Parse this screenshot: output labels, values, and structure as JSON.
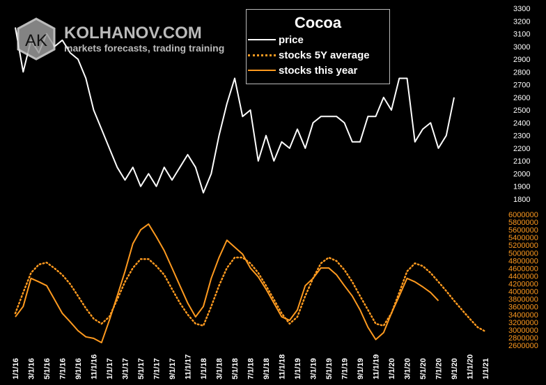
{
  "chart_data": {
    "type": "line",
    "title": "Cocoa",
    "x_tick_labels": [
      "1/1/16",
      "3/1/16",
      "5/1/16",
      "7/1/16",
      "9/1/16",
      "11/1/16",
      "1/1/17",
      "3/1/17",
      "5/1/17",
      "7/1/17",
      "9/1/17",
      "11/1/17",
      "1/1/18",
      "3/1/18",
      "5/1/18",
      "7/1/18",
      "9/1/18",
      "11/1/18",
      "1/1/19",
      "3/1/19",
      "5/1/19",
      "7/1/19",
      "9/1/19",
      "11/1/19",
      "1/1/20",
      "3/1/20",
      "5/1/20",
      "7/1/20",
      "9/1/20",
      "11/1/20",
      "1/1/21"
    ],
    "x_start": "2016-01",
    "x_interval": "monthly",
    "y_right_price": {
      "range": [
        1800,
        3300
      ],
      "ticks": [
        3300,
        3200,
        3100,
        3000,
        2900,
        2800,
        2700,
        2600,
        2500,
        2400,
        2300,
        2200,
        2100,
        2000,
        1900,
        1800
      ]
    },
    "y_right_stocks": {
      "range": [
        2600000,
        6000000
      ],
      "ticks": [
        6000000,
        5800000,
        5600000,
        5400000,
        5200000,
        5000000,
        4800000,
        4600000,
        4400000,
        4200000,
        4000000,
        3800000,
        3600000,
        3400000,
        3200000,
        3000000,
        2800000,
        2600000
      ]
    },
    "grid": false,
    "legend_position": "top-center",
    "series": [
      {
        "name": "price",
        "axis": "price",
        "color": "#ffffff",
        "style": "solid",
        "values": [
          3150,
          2800,
          3050,
          2950,
          3100,
          3000,
          3050,
          2950,
          2900,
          2750,
          2500,
          2350,
          2200,
          2050,
          1950,
          2050,
          1900,
          2000,
          1900,
          2050,
          1950,
          2050,
          2150,
          2050,
          1850,
          2000,
          2300,
          2550,
          2750,
          2450,
          2500,
          2100,
          2300,
          2100,
          2250,
          2200,
          2350,
          2200,
          2400,
          2450,
          2450,
          2450,
          2400,
          2250,
          2250,
          2450,
          2450,
          2600,
          2500,
          2750,
          2750,
          2250,
          2350,
          2400,
          2200,
          2300,
          2600
        ]
      },
      {
        "name": "stocks 5Y average",
        "axis": "stocks",
        "color": "#ff9a1f",
        "style": "dotted",
        "values": [
          3430000,
          3970000,
          4480000,
          4700000,
          4750000,
          4600000,
          4430000,
          4190000,
          3880000,
          3560000,
          3290000,
          3160000,
          3340000,
          3790000,
          4250000,
          4610000,
          4840000,
          4840000,
          4660000,
          4430000,
          4060000,
          3700000,
          3400000,
          3160000,
          3110000,
          3610000,
          4150000,
          4610000,
          4880000,
          4880000,
          4730000,
          4480000,
          4150000,
          3790000,
          3430000,
          3160000,
          3340000,
          3880000,
          4340000,
          4730000,
          4880000,
          4790000,
          4560000,
          4250000,
          3880000,
          3520000,
          3160000,
          3110000,
          3430000,
          3970000,
          4520000,
          4730000,
          4660000,
          4480000,
          4250000,
          4010000,
          3760000,
          3520000,
          3290000,
          3070000,
          2960000
        ]
      },
      {
        "name": "stocks this year",
        "axis": "stocks",
        "color": "#ff9a1f",
        "style": "solid",
        "values": [
          3340000,
          3610000,
          4340000,
          4250000,
          4150000,
          3790000,
          3430000,
          3210000,
          2980000,
          2820000,
          2780000,
          2670000,
          3250000,
          3880000,
          4520000,
          5240000,
          5600000,
          5750000,
          5420000,
          5060000,
          4610000,
          4150000,
          3700000,
          3340000,
          3610000,
          4340000,
          4880000,
          5330000,
          5150000,
          4970000,
          4610000,
          4380000,
          4060000,
          3700000,
          3340000,
          3250000,
          3520000,
          4150000,
          4340000,
          4610000,
          4610000,
          4430000,
          4150000,
          3880000,
          3520000,
          3070000,
          2750000,
          2930000,
          3430000,
          3880000,
          4340000,
          4250000,
          4120000,
          3970000,
          3760000
        ]
      }
    ]
  },
  "watermark": {
    "brand": "KOLHANOV.COM",
    "tagline": "markets forecasts, trading training",
    "logo_text": "AK"
  },
  "colors": {
    "background": "#000000",
    "price": "#ffffff",
    "stocks": "#ff9a1f"
  }
}
